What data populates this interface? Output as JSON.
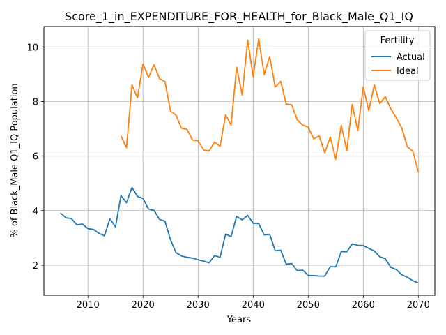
{
  "chart_data": {
    "type": "line",
    "title": "Score_1_in_EXPENDITURE_FOR_HEALTH_for_Black_Male_Q1_IQ",
    "xlabel": "Years",
    "ylabel": "% of Black_Male Q1_IQ Population",
    "xlim": [
      2002,
      2073
    ],
    "ylim": [
      0.9,
      10.75
    ],
    "xticks": [
      2010,
      2020,
      2030,
      2040,
      2050,
      2060,
      2070
    ],
    "yticks": [
      2,
      4,
      6,
      8,
      10
    ],
    "grid": true,
    "legend": {
      "title": "Fertility",
      "placement": "top-right"
    },
    "series": [
      {
        "name": "Actual",
        "color": "#1f77b4",
        "x": [
          2005,
          2006,
          2007,
          2008,
          2009,
          2010,
          2011,
          2012,
          2013,
          2014,
          2015,
          2016,
          2017,
          2018,
          2019,
          2020,
          2021,
          2022,
          2023,
          2024,
          2025,
          2026,
          2027,
          2028,
          2029,
          2030,
          2031,
          2032,
          2033,
          2034,
          2035,
          2036,
          2037,
          2038,
          2039,
          2040,
          2041,
          2042,
          2043,
          2044,
          2045,
          2046,
          2047,
          2048,
          2049,
          2050,
          2051,
          2052,
          2053,
          2054,
          2055,
          2056,
          2057,
          2058,
          2059,
          2060,
          2061,
          2062,
          2063,
          2064,
          2065,
          2066,
          2067,
          2068,
          2069,
          2070
        ],
        "values": [
          3.92,
          3.74,
          3.71,
          3.48,
          3.51,
          3.34,
          3.31,
          3.17,
          3.08,
          3.71,
          3.4,
          4.55,
          4.29,
          4.85,
          4.52,
          4.45,
          4.06,
          4.01,
          3.68,
          3.61,
          2.93,
          2.46,
          2.34,
          2.29,
          2.26,
          2.2,
          2.15,
          2.09,
          2.35,
          2.29,
          3.14,
          3.05,
          3.79,
          3.66,
          3.83,
          3.54,
          3.53,
          3.11,
          3.13,
          2.53,
          2.55,
          2.04,
          2.06,
          1.8,
          1.82,
          1.62,
          1.62,
          1.6,
          1.6,
          1.95,
          1.94,
          2.5,
          2.49,
          2.78,
          2.73,
          2.72,
          2.62,
          2.52,
          2.31,
          2.24,
          1.92,
          1.84,
          1.65,
          1.56,
          1.43,
          1.35
        ]
      },
      {
        "name": "Ideal",
        "color": "#ff7f0e",
        "x": [
          2016,
          2017,
          2018,
          2019,
          2020,
          2021,
          2022,
          2023,
          2024,
          2025,
          2026,
          2027,
          2028,
          2029,
          2030,
          2031,
          2032,
          2033,
          2034,
          2035,
          2036,
          2037,
          2038,
          2039,
          2040,
          2041,
          2042,
          2043,
          2044,
          2045,
          2046,
          2047,
          2048,
          2049,
          2050,
          2051,
          2052,
          2053,
          2054,
          2055,
          2056,
          2057,
          2058,
          2059,
          2060,
          2061,
          2062,
          2063,
          2064,
          2065,
          2066,
          2067,
          2068,
          2069,
          2070
        ],
        "values": [
          6.74,
          6.31,
          8.61,
          8.13,
          9.38,
          8.88,
          9.35,
          8.84,
          8.73,
          7.65,
          7.5,
          7.02,
          6.98,
          6.59,
          6.56,
          6.23,
          6.19,
          6.51,
          6.36,
          7.51,
          7.14,
          9.26,
          8.24,
          10.25,
          8.9,
          10.3,
          8.99,
          9.65,
          8.53,
          8.74,
          7.91,
          7.88,
          7.33,
          7.14,
          7.06,
          6.63,
          6.74,
          6.12,
          6.7,
          5.89,
          7.13,
          6.21,
          7.9,
          6.93,
          8.54,
          7.66,
          8.61,
          7.93,
          8.18,
          7.73,
          7.4,
          7.03,
          6.34,
          6.18,
          5.41
        ]
      }
    ]
  }
}
